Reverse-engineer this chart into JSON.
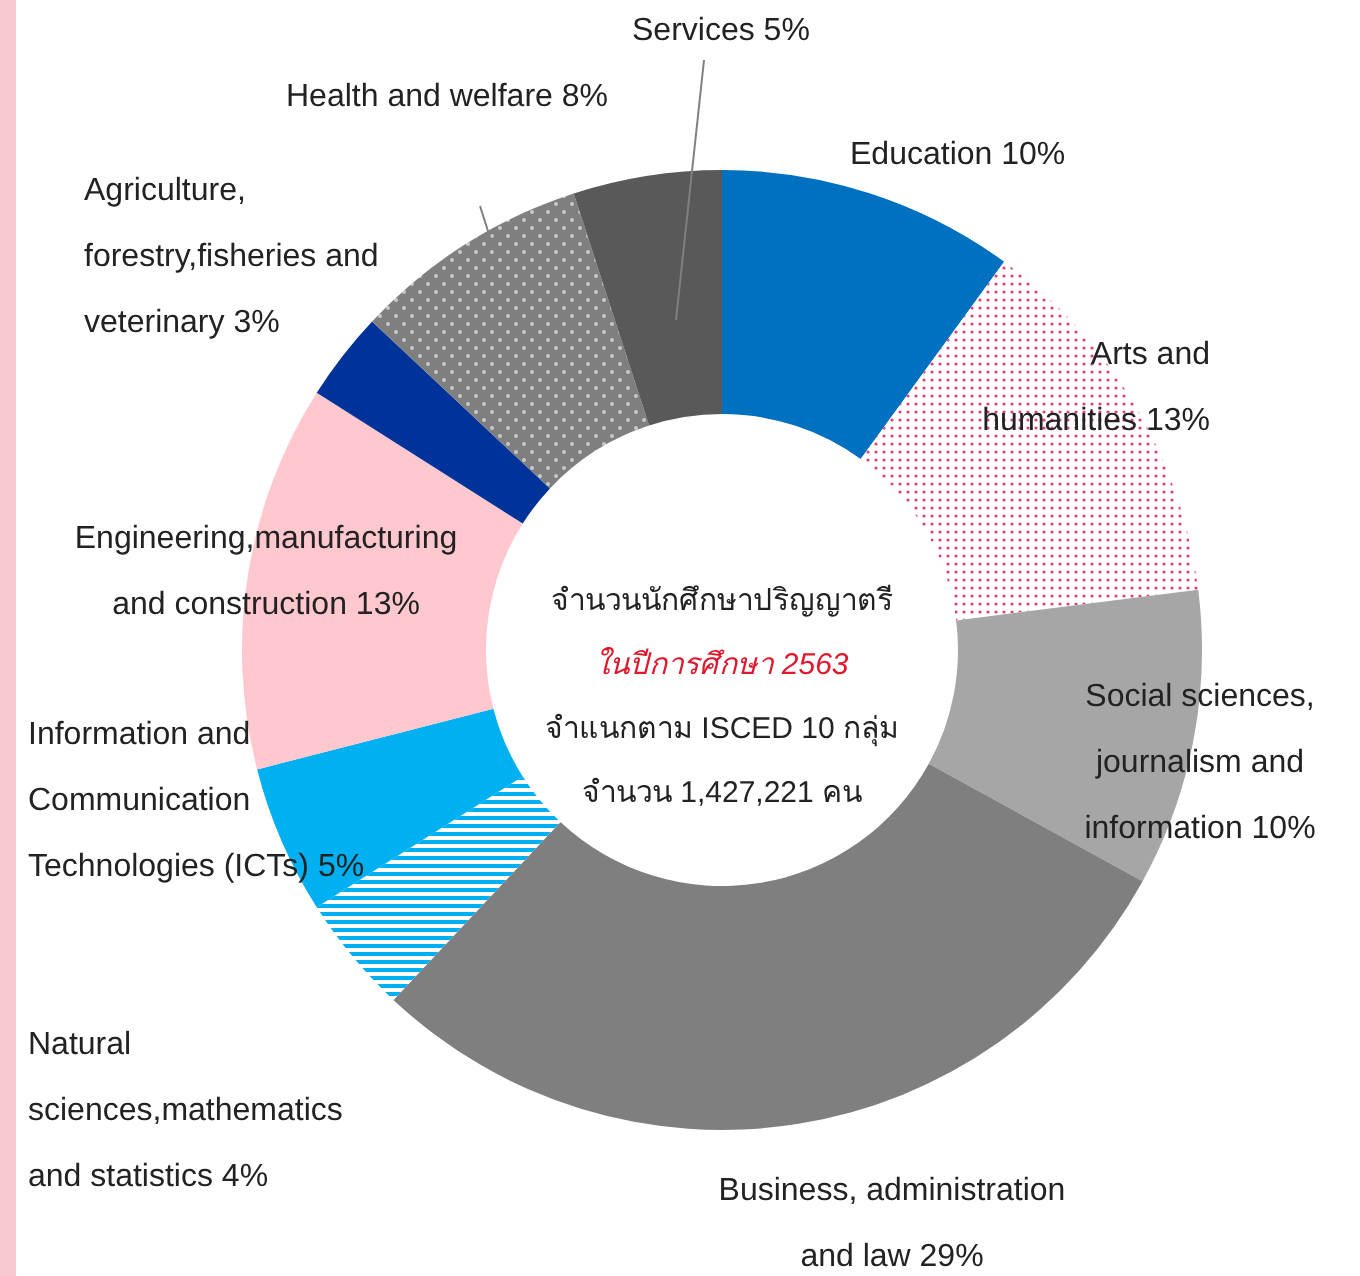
{
  "chart_data": {
    "type": "donut",
    "title": "จำนวนนักศึกษาปริญญาตรี",
    "subtitle": "ในปีการศึกษา 2563",
    "annotations": [
      "จำแนกตาม ISCED 10 กลุ่ม",
      "จำนวน 1,427,221  คน"
    ],
    "categories": [
      "Education",
      "Arts and humanities",
      "Social sciences, journalism and information",
      "Business, administration and law",
      "Natural sciences,mathematics and statistics",
      "Information and Communication Technologies (ICTs)",
      "Engineering,manufacturing and construction",
      "Agriculture, forestry,fisheries and veterinary",
      "Health and welfare",
      "Services"
    ],
    "values": [
      10,
      13,
      10,
      29,
      4,
      5,
      13,
      3,
      8,
      5
    ],
    "value_labels": [
      "10%",
      "13%",
      "10%",
      "29%",
      "4%",
      "5%",
      "13%",
      "3%",
      "8%",
      "5%"
    ],
    "colors": [
      "#0070c0",
      "#e0407a",
      "#a6a6a6",
      "#7f7f7f",
      "#00b0f0",
      "#00b0f0",
      "#ffc7ce",
      "#003399",
      "#7f7f7f",
      "#595959"
    ]
  }
}
